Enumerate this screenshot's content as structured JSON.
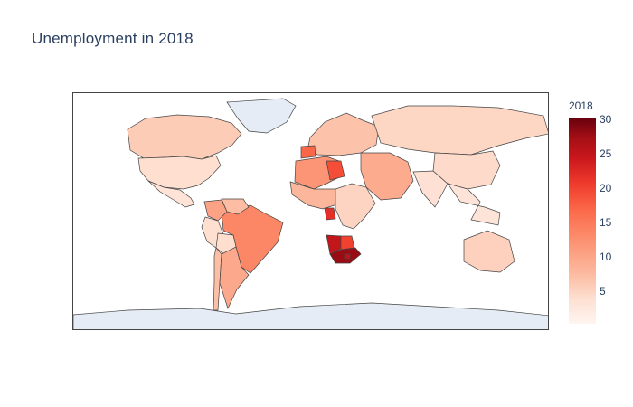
{
  "title": "Unemployment in 2018",
  "colorbar": {
    "title": "2018",
    "ticks": [
      "30",
      "25",
      "20",
      "15",
      "10",
      "5"
    ],
    "range": [
      0,
      30
    ],
    "colors": [
      "#fff5f0",
      "#fee0d2",
      "#fcbba1",
      "#fc9272",
      "#fb6a4a",
      "#ef3b2c",
      "#cb181d",
      "#a50f15",
      "#67000d"
    ]
  },
  "map": {
    "type": "choropleth",
    "projection": "equirectangular",
    "no_data_fill": "#e5ecf6",
    "border_color": "#444444"
  },
  "chart_data": {
    "type": "choropleth",
    "title": "Unemployment in 2018",
    "colorbar_title": "2018",
    "zrange": [
      0,
      30
    ],
    "regions": [
      {
        "region": "Canada",
        "value": 5.8
      },
      {
        "region": "United States",
        "value": 3.9
      },
      {
        "region": "Mexico",
        "value": 3.3
      },
      {
        "region": "Greenland",
        "value": null
      },
      {
        "region": "Brazil",
        "value": 12.3
      },
      {
        "region": "Colombia",
        "value": 9.7
      },
      {
        "region": "Venezuela",
        "value": 7.3
      },
      {
        "region": "Peru",
        "value": 3.9
      },
      {
        "region": "Bolivia",
        "value": 4.0
      },
      {
        "region": "Chile",
        "value": 7.2
      },
      {
        "region": "Argentina",
        "value": 9.2
      },
      {
        "region": "Europe",
        "value": 6.8
      },
      {
        "region": "Spain",
        "value": 15.3
      },
      {
        "region": "Russia",
        "value": 4.8
      },
      {
        "region": "Middle East",
        "value": 9.0
      },
      {
        "region": "India",
        "value": 3.5
      },
      {
        "region": "China",
        "value": 4.4
      },
      {
        "region": "Southeast Asia",
        "value": 3.0
      },
      {
        "region": "Australia",
        "value": 5.3
      },
      {
        "region": "North Africa",
        "value": 11.0
      },
      {
        "region": "Libya",
        "value": 17.3
      },
      {
        "region": "West Africa",
        "value": 8.0
      },
      {
        "region": "Gabon",
        "value": 20.0
      },
      {
        "region": "East Africa",
        "value": 5.0
      },
      {
        "region": "Namibia",
        "value": 23.3
      },
      {
        "region": "Botswana",
        "value": 18.2
      },
      {
        "region": "South Africa",
        "value": 27.0
      },
      {
        "region": "Lesotho",
        "value": 24.0
      },
      {
        "region": "Antarctica",
        "value": null
      }
    ]
  }
}
